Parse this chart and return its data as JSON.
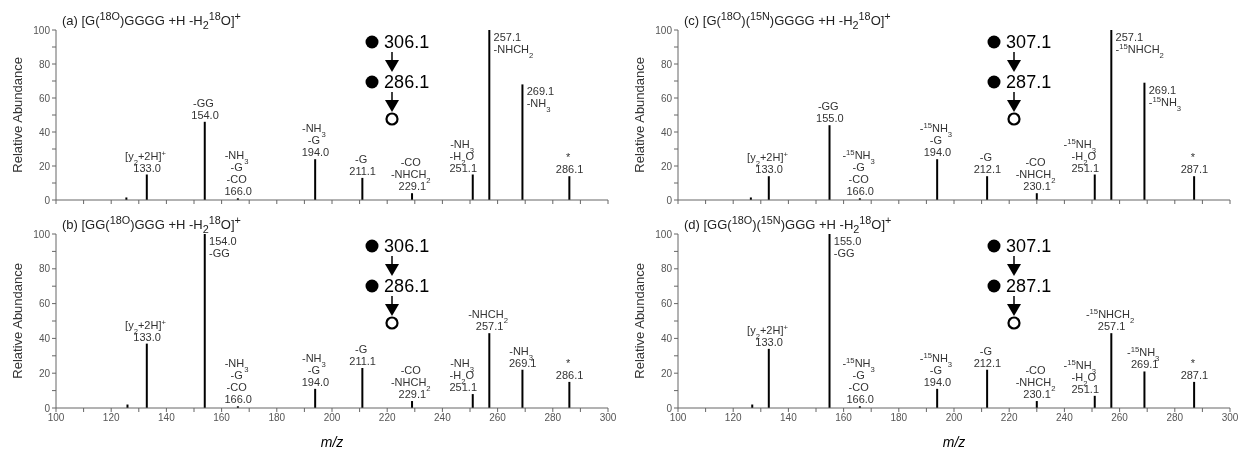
{
  "chart_data": [
    {
      "type": "bar",
      "title": "(a) [G($^{18O}$)GGGG +H -H$_{2}$$^{18}$O]$^{+}$",
      "ylabel": "Relative Abundance",
      "color": "#000000",
      "x": [
        125.6,
        133.0,
        154.0,
        166.0,
        194.0,
        211.1,
        229.1,
        251.1,
        257.1,
        269.1,
        286.1
      ],
      "values": [
        1.5,
        15,
        46,
        1,
        24,
        13,
        4,
        15,
        100,
        68,
        14
      ],
      "xlim": [
        100,
        300
      ],
      "xticks": [
        100,
        {
          "value": 110,
          "label": null
        },
        120,
        {
          "value": 130,
          "label": null
        },
        140,
        {
          "value": 150,
          "label": null
        },
        160,
        {
          "value": 170,
          "label": null
        },
        180,
        {
          "value": 190,
          "label": null
        },
        200,
        {
          "value": 210,
          "label": null
        },
        220,
        {
          "value": 230,
          "label": null
        },
        240,
        {
          "value": 250,
          "label": null
        },
        260,
        {
          "value": 270,
          "label": null
        },
        280,
        {
          "value": 290,
          "label": null
        },
        300
      ],
      "ylim": [
        0,
        100
      ],
      "yticks": [
        0,
        {
          "value": 10,
          "label": null
        },
        20,
        {
          "value": 30,
          "label": null
        },
        40,
        {
          "value": 50,
          "label": null
        },
        60,
        {
          "value": 70,
          "label": null
        },
        80,
        {
          "value": 90,
          "label": null
        },
        100
      ],
      "tick_labels": "y",
      "annotations": [
        {
          "text": "[y$_{2}$+2H]$^{+}$\n133.0",
          "x": 133.0,
          "y": 15
        },
        {
          "text": "-GG\n154.0",
          "x": 154.0,
          "y": 46
        },
        {
          "text": "-NH$_{3}$\n-G\n-CO\n166.0",
          "x": 166.0,
          "y": 1
        },
        {
          "text": "-NH$_{3}$\n-G\n194.0",
          "x": 194.0,
          "y": 24
        },
        {
          "text": "-G\n211.1",
          "x": 211.1,
          "y": 13
        },
        {
          "text": "-CO\n-NHCH$_{2}$\n229.1",
          "x": 229.1,
          "y": 4
        },
        {
          "text": "-NH$_{3}$\n-H$_{2}$O\n251.1",
          "x": 251.1,
          "y": 15
        },
        {
          "text": "257.1\n-NHCH$_{2}$",
          "x": 257.1,
          "y": 100
        },
        {
          "text": "269.1\n-NH$_{3}$",
          "x": 269.1,
          "y": 68
        },
        {
          "text": "*\n286.1",
          "x": 286.1,
          "y": 14
        },
        "306.1",
        "286.1"
      ]
    },
    {
      "type": "bar",
      "title": "(b) [GG($^{18O}$)GGG +H -H$_{2}$$^{18}$O]$^{+}$",
      "ylabel": "Relative Abundance",
      "xlabel": "m/z",
      "color": "#000000",
      "x": [
        126.0,
        133.0,
        154.0,
        166.0,
        194.0,
        211.1,
        229.1,
        251.1,
        257.1,
        269.1,
        286.1
      ],
      "values": [
        2,
        37,
        100,
        1,
        11,
        23,
        4,
        8,
        43,
        22,
        15
      ],
      "xlim": [
        100,
        300
      ],
      "xticks": [
        100,
        {
          "value": 110,
          "label": null
        },
        120,
        {
          "value": 130,
          "label": null
        },
        140,
        {
          "value": 150,
          "label": null
        },
        160,
        {
          "value": 170,
          "label": null
        },
        180,
        {
          "value": 190,
          "label": null
        },
        200,
        {
          "value": 210,
          "label": null
        },
        220,
        {
          "value": 230,
          "label": null
        },
        240,
        {
          "value": 250,
          "label": null
        },
        260,
        {
          "value": 270,
          "label": null
        },
        280,
        {
          "value": 290,
          "label": null
        },
        300
      ],
      "ylim": [
        0,
        100
      ],
      "yticks": [
        0,
        {
          "value": 10,
          "label": null
        },
        20,
        {
          "value": 30,
          "label": null
        },
        40,
        {
          "value": 50,
          "label": null
        },
        60,
        {
          "value": 70,
          "label": null
        },
        80,
        {
          "value": 90,
          "label": null
        },
        100
      ],
      "annotations": [
        {
          "text": "[y$_{2}$+2H]$^{+}$\n133.0",
          "x": 133.0,
          "y": 37
        },
        {
          "text": "154.0\n-GG",
          "x": 154.0,
          "y": 100
        },
        {
          "text": "-NH$_{3}$\n-G\n-CO\n166.0",
          "x": 166.0,
          "y": 1
        },
        {
          "text": "-NH$_{3}$\n-G\n194.0",
          "x": 194.0,
          "y": 11
        },
        {
          "text": "-G\n211.1",
          "x": 211.1,
          "y": 23
        },
        {
          "text": "-CO\n-NHCH$_{2}$\n229.1",
          "x": 229.1,
          "y": 4
        },
        {
          "text": "-NH$_{3}$\n-H$_{2}$O\n251.1",
          "x": 251.1,
          "y": 8
        },
        {
          "text": "-NHCH$_{2}$\n257.1",
          "x": 257.1,
          "y": 43
        },
        {
          "text": "-NH$_{3}$\n269.1",
          "x": 269.1,
          "y": 22
        },
        {
          "text": "*\n286.1",
          "x": 286.1,
          "y": 15
        },
        "306.1",
        "286.1"
      ]
    },
    {
      "type": "bar",
      "title": "(c) [G($^{18O}$)($^{15N}$)GGGG +H -H$_{2}$$^{18}$O]$^{+}$",
      "ylabel": "Relative Abundance",
      "color": "#000000",
      "x": [
        126.5,
        133.0,
        155.0,
        166.0,
        194.0,
        212.1,
        230.1,
        251.1,
        257.1,
        269.1,
        287.1
      ],
      "values": [
        1.5,
        14,
        44,
        1,
        24,
        14,
        4,
        15,
        100,
        69,
        14
      ],
      "xlim": [
        100,
        300
      ],
      "xticks": [
        100,
        {
          "value": 110,
          "label": null
        },
        120,
        {
          "value": 130,
          "label": null
        },
        140,
        {
          "value": 150,
          "label": null
        },
        160,
        {
          "value": 170,
          "label": null
        },
        180,
        {
          "value": 190,
          "label": null
        },
        200,
        {
          "value": 210,
          "label": null
        },
        220,
        {
          "value": 230,
          "label": null
        },
        240,
        {
          "value": 250,
          "label": null
        },
        260,
        {
          "value": 270,
          "label": null
        },
        280,
        {
          "value": 290,
          "label": null
        },
        300
      ],
      "ylim": [
        0,
        100
      ],
      "yticks": [
        0,
        {
          "value": 10,
          "label": null
        },
        20,
        {
          "value": 30,
          "label": null
        },
        40,
        {
          "value": 50,
          "label": null
        },
        60,
        {
          "value": 70,
          "label": null
        },
        80,
        {
          "value": 90,
          "label": null
        },
        100
      ],
      "tick_labels": "y",
      "annotations": [
        {
          "text": "[y$_{2}$+2H]$^{+}$\n133.0",
          "x": 133.0,
          "y": 14
        },
        {
          "text": "-GG\n155.0",
          "x": 155.0,
          "y": 44
        },
        {
          "text": "-$^{15}$NH$_{3}$\n-G\n-CO\n166.0",
          "x": 166.0,
          "y": 1
        },
        {
          "text": "-$^{15}$NH$_{3}$\n-G\n194.0",
          "x": 194.0,
          "y": 24
        },
        {
          "text": "-G\n212.1",
          "x": 212.1,
          "y": 14
        },
        {
          "text": "-CO\n-NHCH$_{2}$\n230.1",
          "x": 230.1,
          "y": 4
        },
        {
          "text": "-$^{15}$NH$_{3}$\n-H$_{2}$O\n251.1",
          "x": 251.1,
          "y": 15
        },
        {
          "text": "257.1\n-$^{15}$NHCH$_{2}$",
          "x": 257.1,
          "y": 100
        },
        {
          "text": "269.1\n-$^{15}$NH$_{3}$",
          "x": 269.1,
          "y": 69
        },
        {
          "text": "*\n287.1",
          "x": 287.1,
          "y": 14
        },
        "307.1",
        "287.1"
      ]
    },
    {
      "type": "bar",
      "title": "(d) [GG($^{18O}$)($^{15N}$)GGG +H -H$_{2}$$^{18}$O]$^{+}$",
      "ylabel": "Relative Abundance",
      "xlabel": "m/z",
      "color": "#000000",
      "x": [
        127.0,
        133.0,
        155.0,
        166.0,
        194.0,
        212.1,
        230.1,
        251.1,
        257.1,
        269.1,
        287.1
      ],
      "values": [
        2,
        34,
        100,
        1,
        11,
        22,
        4,
        7,
        43,
        21,
        15
      ],
      "xlim": [
        100,
        300
      ],
      "xticks": [
        100,
        {
          "value": 110,
          "label": null
        },
        120,
        {
          "value": 130,
          "label": null
        },
        140,
        {
          "value": 150,
          "label": null
        },
        160,
        {
          "value": 170,
          "label": null
        },
        180,
        {
          "value": 190,
          "label": null
        },
        200,
        {
          "value": 210,
          "label": null
        },
        220,
        {
          "value": 230,
          "label": null
        },
        240,
        {
          "value": 250,
          "label": null
        },
        260,
        {
          "value": 270,
          "label": null
        },
        280,
        {
          "value": 290,
          "label": null
        },
        300
      ],
      "ylim": [
        0,
        100
      ],
      "yticks": [
        0,
        {
          "value": 10,
          "label": null
        },
        20,
        {
          "value": 30,
          "label": null
        },
        40,
        {
          "value": 50,
          "label": null
        },
        60,
        {
          "value": 70,
          "label": null
        },
        80,
        {
          "value": 90,
          "label": null
        },
        100
      ],
      "annotations": [
        {
          "text": "[y$_{2}$+2H]$^{+}$\n133.0",
          "x": 133.0,
          "y": 34
        },
        {
          "text": "155.0\n-GG",
          "x": 155.0,
          "y": 100
        },
        {
          "text": "-$^{15}$NH$_{3}$\n-G\n-CO\n166.0",
          "x": 166.0,
          "y": 1
        },
        {
          "text": "-$^{15}$NH$_{3}$\n-G\n194.0",
          "x": 194.0,
          "y": 11
        },
        {
          "text": "-G\n212.1",
          "x": 212.1,
          "y": 22
        },
        {
          "text": "-CO\n-NHCH$_{2}$\n230.1",
          "x": 230.1,
          "y": 4
        },
        {
          "text": "-$^{15}$NH$_{3}$\n-H$_{2}$O\n251.1",
          "x": 251.1,
          "y": 7
        },
        {
          "text": "-$^{15}$NHCH$_{2}$\n257.1",
          "x": 257.1,
          "y": 43
        },
        {
          "text": "-$^{15}$NH$_{3}$\n269.1",
          "x": 269.1,
          "y": 21
        },
        {
          "text": "*\n287.1",
          "x": 287.1,
          "y": 15
        },
        "307.1",
        "287.1"
      ]
    }
  ]
}
